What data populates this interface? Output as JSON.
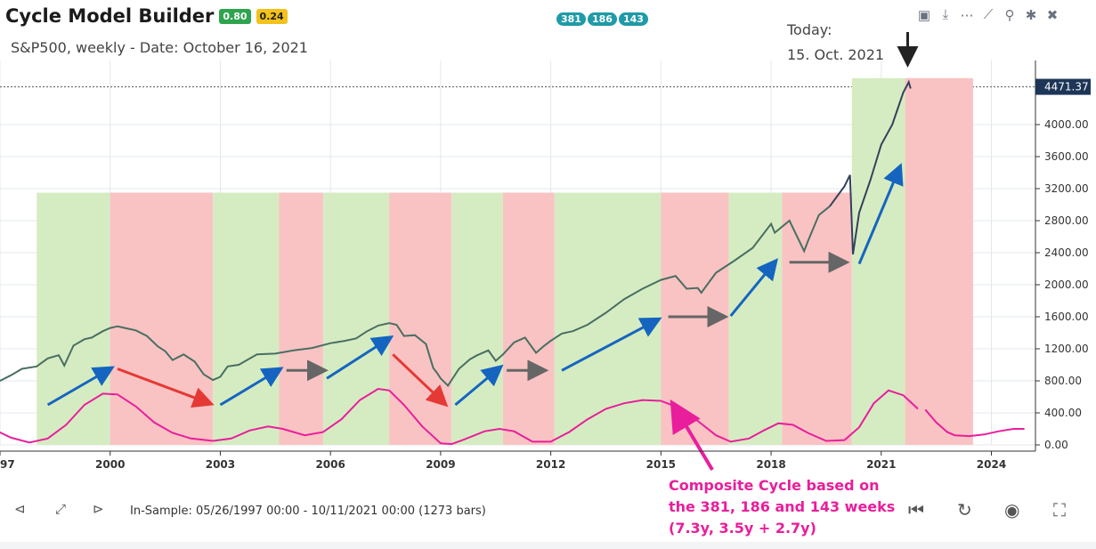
{
  "app": {
    "title": "Cycle Model Builder",
    "badge1": "0.80",
    "badge2": "0.24"
  },
  "subtitle": "S&P500, weekly - Date: October 16, 2021",
  "pills": [
    "381",
    "186",
    "143"
  ],
  "today": {
    "line1": "Today:",
    "line2": "15. Oct. 2021"
  },
  "toolbar": [
    "folder-add-icon",
    "download-icon",
    "dots-icon",
    "trend-icon",
    "pin-icon",
    "bug-icon",
    "trash-icon"
  ],
  "in_sample": "In-Sample: 05/26/1997 00:00 - 10/11/2021 00:00 (1273 bars)",
  "annotation": {
    "line1": "Composite Cycle based on",
    "line2": "the 381, 186 and 143 weeks",
    "line3": "(7.3y, 3.5y + 2.7y)"
  },
  "colors": {
    "up_zone": "#d5ecc2",
    "down_zone": "#f9c3c3",
    "price": "#4a6e62",
    "price_recent": "#33415c",
    "cycle": "#e91e9c",
    "trend_up": "#1565c0",
    "trend_down": "#e53935",
    "flat": "#666666",
    "last_price_bg": "#1d3557"
  },
  "chart_data": {
    "type": "line",
    "x_unit": "year",
    "xlim": [
      1997,
      2025.2
    ],
    "ylim": [
      0,
      4800
    ],
    "x_ticks": [
      "97",
      "2000",
      "2003",
      "2006",
      "2009",
      "2012",
      "2015",
      "2018",
      "2021",
      "2024"
    ],
    "x_tick_values": [
      1997,
      2000,
      2003,
      2006,
      2009,
      2012,
      2015,
      2018,
      2021,
      2024
    ],
    "y_ticks": [
      "0.00",
      "400.00",
      "800.00",
      "1200.00",
      "1600.00",
      "2000.00",
      "2400.00",
      "2800.00",
      "3200.00",
      "3600.00",
      "4000.00"
    ],
    "y_tick_values": [
      0,
      400,
      800,
      1200,
      1600,
      2000,
      2400,
      2800,
      3200,
      3600,
      4000
    ],
    "last_price": {
      "label": "4471.37",
      "value": 4471.37
    },
    "zones": [
      {
        "kind": "up",
        "start": 1998.0,
        "end": 2000.0,
        "top": 3150
      },
      {
        "kind": "down",
        "start": 2000.0,
        "end": 2002.8,
        "top": 3150
      },
      {
        "kind": "up",
        "start": 2002.8,
        "end": 2004.6,
        "top": 3150
      },
      {
        "kind": "down",
        "start": 2004.6,
        "end": 2005.8,
        "top": 3150
      },
      {
        "kind": "up",
        "start": 2005.8,
        "end": 2007.6,
        "top": 3150
      },
      {
        "kind": "down",
        "start": 2007.6,
        "end": 2009.3,
        "top": 3150
      },
      {
        "kind": "up",
        "start": 2009.3,
        "end": 2010.7,
        "top": 3150
      },
      {
        "kind": "down",
        "start": 2010.7,
        "end": 2012.1,
        "top": 3150
      },
      {
        "kind": "up",
        "start": 2012.1,
        "end": 2015.0,
        "top": 3150
      },
      {
        "kind": "down",
        "start": 2015.0,
        "end": 2016.85,
        "top": 3150
      },
      {
        "kind": "up",
        "start": 2016.85,
        "end": 2018.3,
        "top": 3150
      },
      {
        "kind": "down",
        "start": 2018.3,
        "end": 2020.2,
        "top": 3150
      },
      {
        "kind": "up",
        "start": 2020.2,
        "end": 2021.65,
        "top": 4580
      },
      {
        "kind": "down",
        "start": 2021.65,
        "end": 2023.5,
        "top": 4580
      }
    ],
    "series": [
      {
        "role": "price",
        "x": [
          1996.8,
          1997.0,
          1997.3,
          1997.6,
          1998.0,
          1998.3,
          1998.6,
          1998.75,
          1999.0,
          1999.3,
          1999.5,
          1999.8,
          2000.0,
          2000.2,
          2000.5,
          2000.7,
          2001.0,
          2001.3,
          2001.5,
          2001.7,
          2002.0,
          2002.3,
          2002.55,
          2002.8,
          2003.0,
          2003.2,
          2003.5,
          2004.0,
          2004.5,
          2005.0,
          2005.5,
          2006.0,
          2006.4,
          2006.7,
          2007.0,
          2007.3,
          2007.6,
          2007.8,
          2008.0,
          2008.3,
          2008.6,
          2008.8,
          2008.9,
          2009.0,
          2009.2,
          2009.5,
          2009.8,
          2010.0,
          2010.3,
          2010.5,
          2010.7,
          2011.0,
          2011.3,
          2011.6,
          2011.8,
          2012.0,
          2012.3,
          2012.6,
          2013.0,
          2013.5,
          2014.0,
          2014.5,
          2015.0,
          2015.4,
          2015.7,
          2016.0,
          2016.1,
          2016.5,
          2017.0,
          2017.5,
          2018.0,
          2018.1,
          2018.5,
          2018.9,
          2019.0,
          2019.3,
          2019.6,
          2020.0,
          2020.15,
          2020.23,
          2020.4,
          2020.7,
          2021.0,
          2021.3,
          2021.6,
          2021.75,
          2021.8
        ],
        "y": [
          760,
          800,
          870,
          950,
          980,
          1080,
          1120,
          990,
          1240,
          1320,
          1340,
          1420,
          1460,
          1480,
          1450,
          1430,
          1360,
          1230,
          1170,
          1060,
          1130,
          1040,
          880,
          810,
          850,
          980,
          1000,
          1130,
          1140,
          1180,
          1210,
          1270,
          1300,
          1330,
          1420,
          1490,
          1520,
          1500,
          1360,
          1370,
          1260,
          960,
          900,
          830,
          740,
          950,
          1070,
          1120,
          1180,
          1050,
          1130,
          1280,
          1340,
          1150,
          1230,
          1300,
          1390,
          1420,
          1500,
          1650,
          1820,
          1950,
          2060,
          2110,
          1950,
          1960,
          1900,
          2150,
          2300,
          2460,
          2760,
          2650,
          2800,
          2420,
          2540,
          2870,
          2980,
          3230,
          3370,
          2380,
          2900,
          3300,
          3750,
          4000,
          4400,
          4530,
          4450
        ]
      },
      {
        "role": "composite_cycle",
        "x": [
          2022.2,
          2022.5,
          2022.8,
          2023.0,
          2023.4,
          2023.8,
          2024.2,
          2024.6,
          2024.9
        ],
        "y": [
          440,
          280,
          160,
          120,
          110,
          130,
          170,
          200,
          200
        ]
      }
    ],
    "trend_arrows": [
      {
        "type": "up",
        "from": [
          1998.3,
          500
        ],
        "to": [
          2000.0,
          950
        ]
      },
      {
        "type": "down",
        "from": [
          2000.2,
          950
        ],
        "to": [
          2002.7,
          520
        ]
      },
      {
        "type": "up",
        "from": [
          2003.0,
          500
        ],
        "to": [
          2004.6,
          940
        ]
      },
      {
        "type": "flat",
        "from": [
          2004.8,
          930
        ],
        "to": [
          2005.8,
          930
        ]
      },
      {
        "type": "up",
        "from": [
          2005.9,
          830
        ],
        "to": [
          2007.6,
          1330
        ]
      },
      {
        "type": "down",
        "from": [
          2007.7,
          1130
        ],
        "to": [
          2009.1,
          520
        ]
      },
      {
        "type": "up",
        "from": [
          2009.4,
          500
        ],
        "to": [
          2010.6,
          960
        ]
      },
      {
        "type": "flat",
        "from": [
          2010.8,
          930
        ],
        "to": [
          2011.8,
          930
        ]
      },
      {
        "type": "up",
        "from": [
          2012.3,
          930
        ],
        "to": [
          2014.9,
          1560
        ]
      },
      {
        "type": "flat",
        "from": [
          2015.2,
          1600
        ],
        "to": [
          2016.7,
          1600
        ]
      },
      {
        "type": "up",
        "from": [
          2016.9,
          1610
        ],
        "to": [
          2018.1,
          2280
        ]
      },
      {
        "type": "flat",
        "from": [
          2018.5,
          2280
        ],
        "to": [
          2020.0,
          2280
        ]
      },
      {
        "type": "up",
        "from": [
          2020.4,
          2260
        ],
        "to": [
          2021.5,
          3460
        ]
      }
    ],
    "cycle_points": {
      "x": [
        1996.8,
        1997.3,
        1997.8,
        1998.3,
        1998.8,
        1999.3,
        1999.8,
        2000.2,
        2000.7,
        2001.2,
        2001.7,
        2002.2,
        2002.8,
        2003.3,
        2003.8,
        2004.3,
        2004.7,
        2005.3,
        2005.8,
        2006.3,
        2006.8,
        2007.3,
        2007.6,
        2008.0,
        2008.5,
        2009.0,
        2009.3,
        2009.6,
        2010.2,
        2010.6,
        2011.0,
        2011.5,
        2012.0,
        2012.5,
        2013.0,
        2013.5,
        2014.0,
        2014.5,
        2015.0,
        2015.5,
        2016.0,
        2016.5,
        2016.9,
        2017.4,
        2017.8,
        2018.2,
        2018.6,
        2019.0,
        2019.5,
        2020.0,
        2020.4,
        2020.8,
        2021.2,
        2021.6,
        2022.0
      ],
      "y": [
        200,
        90,
        30,
        80,
        250,
        500,
        640,
        630,
        480,
        280,
        150,
        80,
        50,
        80,
        180,
        230,
        200,
        120,
        160,
        320,
        560,
        700,
        680,
        500,
        230,
        20,
        10,
        60,
        170,
        200,
        170,
        40,
        40,
        160,
        320,
        450,
        520,
        560,
        550,
        460,
        300,
        120,
        40,
        80,
        180,
        270,
        250,
        150,
        50,
        60,
        220,
        520,
        680,
        620,
        450
      ]
    }
  }
}
